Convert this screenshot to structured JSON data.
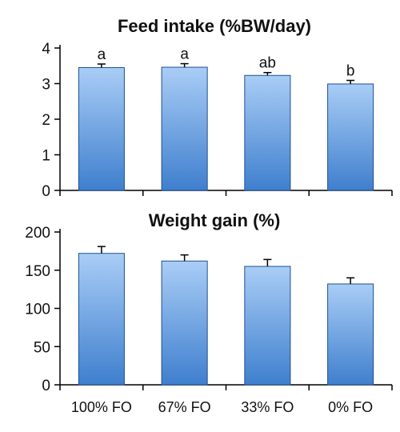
{
  "chart_data": [
    {
      "type": "bar",
      "title": "Feed intake (%BW/day)",
      "categories": [
        "100% FO",
        "67% FO",
        "33% FO",
        "0% FO"
      ],
      "values": [
        3.45,
        3.46,
        3.23,
        2.99
      ],
      "errors": [
        0.1,
        0.1,
        0.08,
        0.1
      ],
      "bar_labels": [
        "a",
        "a",
        "ab",
        "b"
      ],
      "ylim": [
        0,
        4
      ],
      "yticks": [
        0,
        1,
        2,
        3,
        4
      ],
      "show_category_labels": false,
      "grid": false
    },
    {
      "type": "bar",
      "title": "Weight gain (%)",
      "categories": [
        "100% FO",
        "67% FO",
        "33% FO",
        "0% FO"
      ],
      "values": [
        172,
        162,
        155,
        132
      ],
      "errors": [
        9,
        8,
        9,
        8
      ],
      "bar_labels": [
        "",
        "",
        "",
        ""
      ],
      "ylim": [
        0,
        200
      ],
      "yticks": [
        0,
        50,
        100,
        150,
        200
      ],
      "show_category_labels": true,
      "grid": false
    }
  ],
  "colors": {
    "bar_top": "#a9cdf6",
    "bar_bottom": "#3f7fce",
    "bar_edge": "#1f4f8f",
    "axis": "#000000"
  }
}
